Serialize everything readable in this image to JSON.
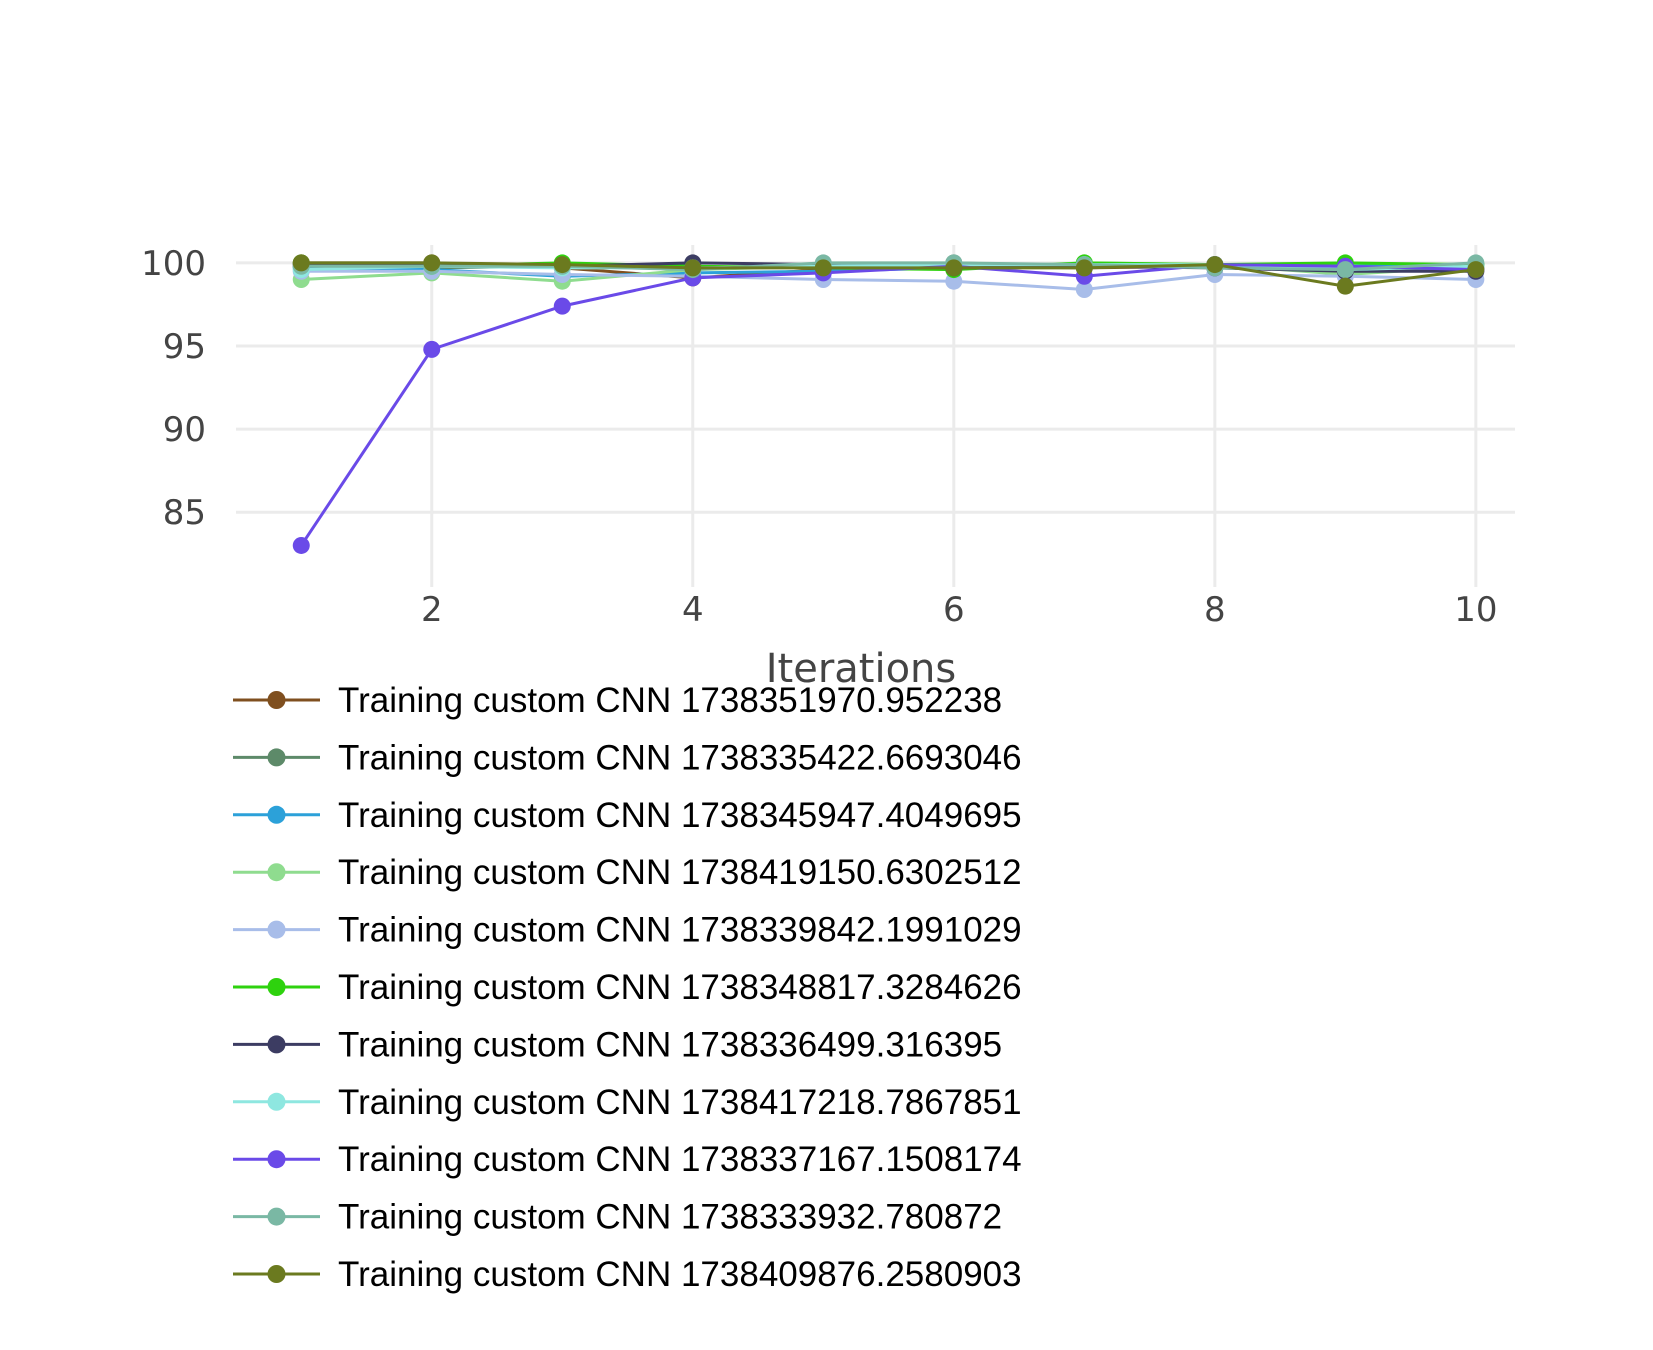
{
  "chart_data": {
    "type": "line",
    "title": "",
    "xlabel": "Iterations",
    "ylabel": "",
    "xlim": [
      0.5,
      10.3
    ],
    "ylim": [
      80.5,
      101.8
    ],
    "x_ticks": [
      2,
      4,
      6,
      8,
      10
    ],
    "y_ticks": [
      85,
      90,
      95,
      100
    ],
    "grid": true,
    "legend_position": "bottom-left",
    "x": [
      1,
      2,
      3,
      4,
      5,
      6,
      7,
      8,
      9,
      10
    ],
    "series": [
      {
        "name": "Training custom CNN 1738351970.952238",
        "color": "#7f4f1f",
        "values": [
          100,
          100,
          99.7,
          99.1,
          99.6,
          99.8,
          99.7,
          99.8,
          99.5,
          99.7
        ]
      },
      {
        "name": "Training custom CNN 1738335422.6693046",
        "color": "#5d8a69",
        "values": [
          99.8,
          99.7,
          99.8,
          99.7,
          99.9,
          100,
          99.8,
          99.9,
          99.6,
          99.8
        ]
      },
      {
        "name": "Training custom CNN 1738345947.4049695",
        "color": "#2ca1d9",
        "values": [
          99.7,
          99.6,
          99.2,
          99.4,
          99.5,
          99.7,
          99.8,
          99.9,
          99.8,
          99.9
        ]
      },
      {
        "name": "Training custom CNN 1738419150.6302512",
        "color": "#8fdc8f",
        "values": [
          99.0,
          99.4,
          98.9,
          99.6,
          99.8,
          99.7,
          100,
          99.9,
          99.3,
          99.8
        ]
      },
      {
        "name": "Training custom CNN 1738339842.1991029",
        "color": "#a8bde9",
        "values": [
          99.5,
          99.5,
          99.3,
          99.2,
          99.0,
          98.9,
          98.4,
          99.3,
          99.2,
          99.0
        ]
      },
      {
        "name": "Training custom CNN 1738348817.3284626",
        "color": "#2ed20e",
        "values": [
          100,
          99.8,
          100,
          99.8,
          99.7,
          99.6,
          100,
          99.9,
          100,
          99.9
        ]
      },
      {
        "name": "Training custom CNN 1738336499.316395",
        "color": "#3c3c62",
        "values": [
          99.9,
          99.9,
          99.8,
          100,
          99.9,
          99.7,
          99.8,
          99.7,
          99.5,
          99.5
        ]
      },
      {
        "name": "Training custom CNN 1738417218.7867851",
        "color": "#8ee7e0",
        "values": [
          99.6,
          99.8,
          99.7,
          99.7,
          99.8,
          99.9,
          99.9,
          99.9,
          99.6,
          99.8
        ]
      },
      {
        "name": "Training custom CNN 1738337167.1508174",
        "color": "#6a4ae8",
        "values": [
          83.0,
          94.8,
          97.4,
          99.1,
          99.4,
          99.8,
          99.2,
          99.9,
          99.8,
          99.6
        ]
      },
      {
        "name": "Training custom CNN 1738333932.780872",
        "color": "#7ab8a4",
        "values": [
          99.8,
          99.8,
          99.8,
          99.6,
          100,
          100,
          99.9,
          99.7,
          99.6,
          100
        ]
      },
      {
        "name": "Training custom CNN 1738409876.2580903",
        "color": "#6b7a1f",
        "values": [
          100,
          100,
          99.9,
          99.7,
          99.7,
          99.7,
          99.7,
          99.9,
          98.6,
          99.6
        ]
      }
    ]
  }
}
